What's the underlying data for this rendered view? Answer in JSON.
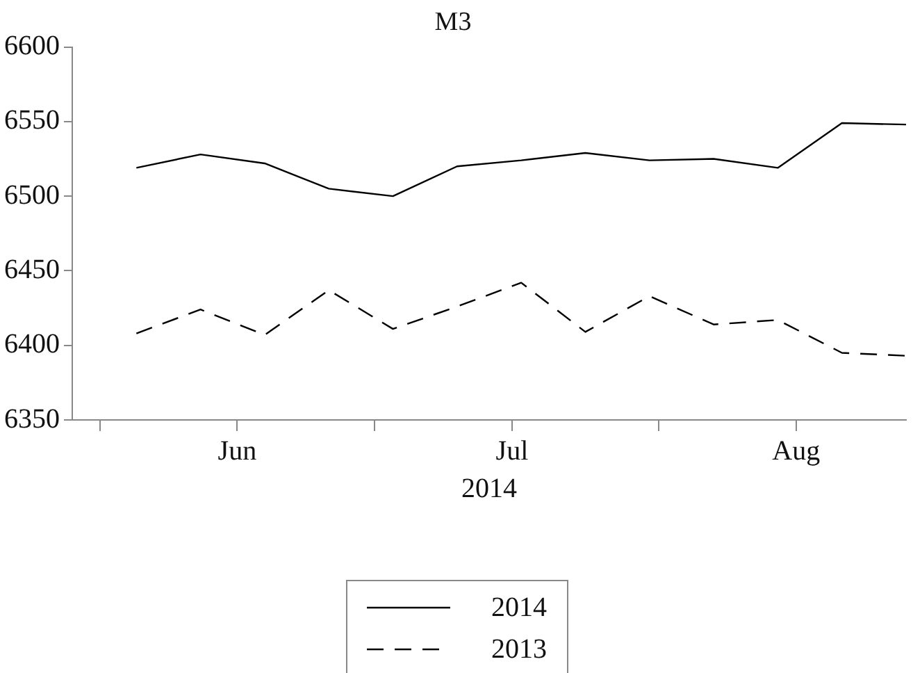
{
  "chart_data": {
    "type": "line",
    "title": "M3",
    "xlabel": "2014",
    "x": [
      "2014-06-05",
      "2014-06-12",
      "2014-06-19",
      "2014-06-26",
      "2014-07-03",
      "2014-07-10",
      "2014-07-17",
      "2014-07-24",
      "2014-07-31",
      "2014-08-07",
      "2014-08-14",
      "2014-08-21",
      "2014-08-28"
    ],
    "series": [
      {
        "name": "2014",
        "color": "#000000",
        "line_style": "solid",
        "values": [
          6519,
          6528,
          6522,
          6505,
          6500,
          6520,
          6524,
          6529,
          6524,
          6525,
          6519,
          6549,
          6548
        ]
      },
      {
        "name": "2013",
        "color": "#000000",
        "line_style": "dashed",
        "values": [
          6408,
          6424,
          6407,
          6437,
          6411,
          6426,
          6442,
          6409,
          6433,
          6414,
          6417,
          6395,
          6393
        ]
      }
    ],
    "xlim": [
      "2014-05-29",
      "2014-08-28"
    ],
    "xticks": [
      {
        "value": "2014-06-01",
        "label": null
      },
      {
        "value": "2014-06-16",
        "label": "Jun"
      },
      {
        "value": "2014-07-01",
        "label": null
      },
      {
        "value": "2014-07-16",
        "label": "Jul"
      },
      {
        "value": "2014-08-01",
        "label": null
      },
      {
        "value": "2014-08-16",
        "label": "Aug"
      }
    ],
    "ylim": [
      6350,
      6600
    ],
    "yticks": [
      6350,
      6400,
      6450,
      6500,
      6550,
      6600
    ],
    "grid": false,
    "legend": "bottom",
    "marker": "none"
  }
}
